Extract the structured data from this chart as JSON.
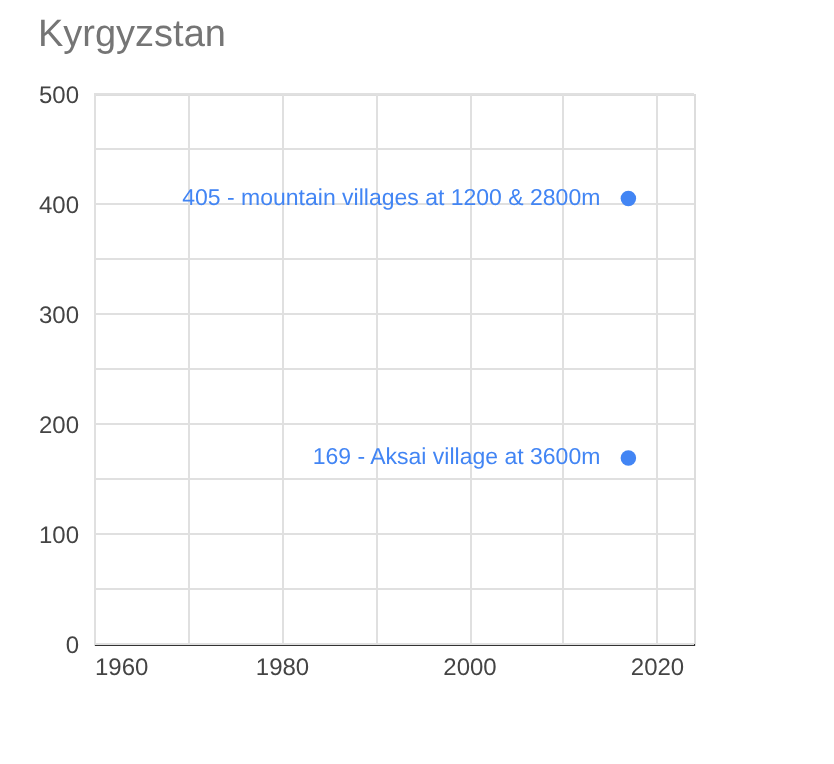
{
  "chart_data": {
    "type": "scatter",
    "title": "Kyrgyzstan",
    "x": [
      2017,
      2017
    ],
    "series": [
      {
        "color": "#4285f4",
        "values": [
          405,
          169
        ]
      }
    ],
    "xlim": [
      1960,
      2024
    ],
    "xticks": [
      1960,
      {
        "value": 1970,
        "label": null
      },
      1980,
      {
        "value": 1990,
        "label": null
      },
      2000,
      {
        "value": 2010,
        "label": null
      },
      2020
    ],
    "ylim": [
      0,
      500
    ],
    "yticks": [
      0,
      {
        "value": 50,
        "label": null
      },
      100,
      {
        "value": 150,
        "label": null
      },
      200,
      {
        "value": 250,
        "label": null
      },
      300,
      {
        "value": 350,
        "label": null
      },
      400,
      {
        "value": 450,
        "label": null
      },
      500
    ],
    "annotations": [
      {
        "text": "405 - mountain villages at 1200 & 2800m",
        "x": 2017,
        "y": 405
      },
      {
        "text": "169 - Aksai village at 3600m",
        "x": 2017,
        "y": 169
      }
    ],
    "grid": true,
    "marker": "circle"
  }
}
